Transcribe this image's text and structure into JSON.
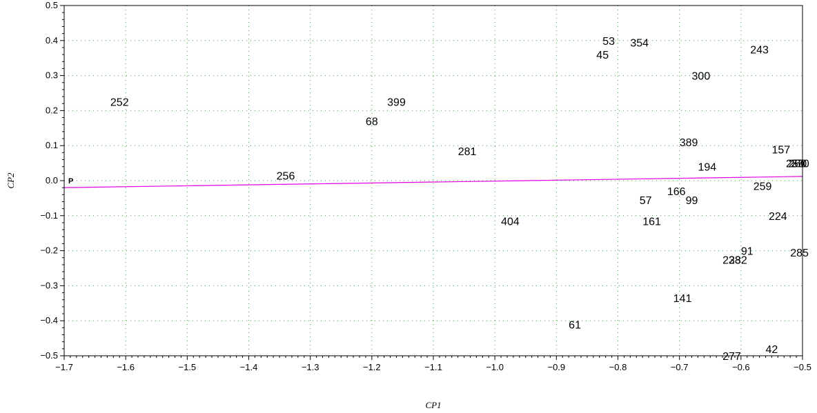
{
  "chart_data": {
    "type": "scatter",
    "xlabel": "CP1",
    "ylabel": "CP2",
    "xlim": [
      -1.7,
      -0.5
    ],
    "ylim": [
      -0.5,
      0.5
    ],
    "xticks": [
      "−1.7",
      "−1.6",
      "−1.5",
      "−1.4",
      "−1.3",
      "−1.2",
      "−1.1",
      "−1.0",
      "−0.9",
      "−0.8",
      "−0.7",
      "−0.6",
      "−0.5"
    ],
    "xtick_values": [
      -1.7,
      -1.6,
      -1.5,
      -1.4,
      -1.3,
      -1.2,
      -1.1,
      -1.0,
      -0.9,
      -0.8,
      -0.7,
      -0.6,
      -0.5
    ],
    "yticks": [
      "0.5",
      "0.4",
      "0.3",
      "0.2",
      "0.1",
      "0.0",
      "−0.1",
      "−0.2",
      "−0.3",
      "−0.4",
      "−0.5"
    ],
    "ytick_values": [
      0.5,
      0.4,
      0.3,
      0.2,
      0.1,
      0.0,
      -0.1,
      -0.2,
      -0.3,
      -0.4,
      -0.5
    ],
    "grid": true,
    "grid_color": "#2e9e2e",
    "line_color": "#e000e0",
    "line": {
      "label": "P",
      "x": [
        -1.7,
        -0.5
      ],
      "y": [
        -0.02,
        0.012
      ]
    },
    "points": [
      {
        "label": "252",
        "x": -1.61,
        "y": 0.225
      },
      {
        "label": "399",
        "x": -1.16,
        "y": 0.225
      },
      {
        "label": "68",
        "x": -1.2,
        "y": 0.17
      },
      {
        "label": "281",
        "x": -1.045,
        "y": 0.085
      },
      {
        "label": "256",
        "x": -1.34,
        "y": 0.015
      },
      {
        "label": "404",
        "x": -0.975,
        "y": -0.115
      },
      {
        "label": "53",
        "x": -0.815,
        "y": 0.4
      },
      {
        "label": "354",
        "x": -0.765,
        "y": 0.395
      },
      {
        "label": "45",
        "x": -0.825,
        "y": 0.36
      },
      {
        "label": "243",
        "x": -0.57,
        "y": 0.375
      },
      {
        "label": "300",
        "x": -0.665,
        "y": 0.3
      },
      {
        "label": "389",
        "x": -0.685,
        "y": 0.11
      },
      {
        "label": "157",
        "x": -0.535,
        "y": 0.09
      },
      {
        "label": "194",
        "x": -0.655,
        "y": 0.04
      },
      {
        "label": "259",
        "x": -0.565,
        "y": -0.015
      },
      {
        "label": "166",
        "x": -0.705,
        "y": -0.03
      },
      {
        "label": "57",
        "x": -0.755,
        "y": -0.055
      },
      {
        "label": "99",
        "x": -0.68,
        "y": -0.055
      },
      {
        "label": "224",
        "x": -0.54,
        "y": -0.1
      },
      {
        "label": "161",
        "x": -0.745,
        "y": -0.115
      },
      {
        "label": "91",
        "x": -0.59,
        "y": -0.2
      },
      {
        "label": "285",
        "x": -0.505,
        "y": -0.205
      },
      {
        "label": "238",
        "x": -0.615,
        "y": -0.225
      },
      {
        "label": "232",
        "x": -0.605,
        "y": -0.225
      },
      {
        "label": "141",
        "x": -0.695,
        "y": -0.335
      },
      {
        "label": "61",
        "x": -0.87,
        "y": -0.41
      },
      {
        "label": "42",
        "x": -0.55,
        "y": -0.48
      },
      {
        "label": "277",
        "x": -0.615,
        "y": -0.5
      },
      {
        "label": "250",
        "x": -0.512,
        "y": 0.05
      },
      {
        "label": "260",
        "x": -0.508,
        "y": 0.05
      },
      {
        "label": "270",
        "x": -0.504,
        "y": 0.05
      }
    ]
  }
}
